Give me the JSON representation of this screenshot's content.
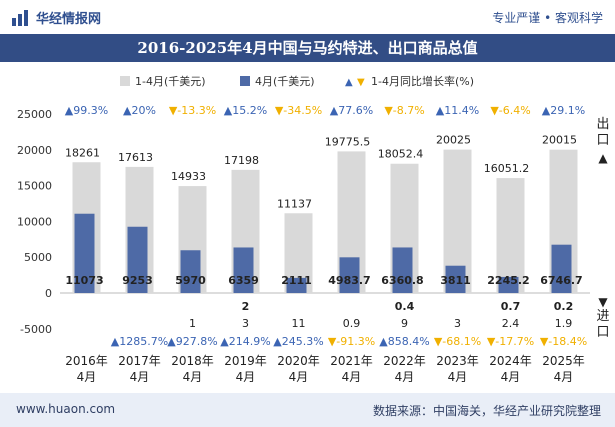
{
  "brand": {
    "logo_text": "华经情报网",
    "slogan": "专业严谨 • 客观科学",
    "website": "www.huaon.com",
    "source": "数据来源：中国海关，华经产业研究院整理"
  },
  "colors": {
    "title_band": "#324d85",
    "bar_cumulative": "#d9d9d9",
    "bar_month": "#4e6aa6",
    "up": "#3b64b3",
    "down": "#f0b000"
  },
  "chart_data": {
    "type": "bar",
    "title": "2016-2025年4月中国与马约特进、出口商品总值",
    "categories": [
      "2016年\n4月",
      "2017年\n4月",
      "2018年\n4月",
      "2019年\n4月",
      "2020年\n4月",
      "2021年\n4月",
      "2022年\n4月",
      "2023年\n4月",
      "2024年\n4月",
      "2025年\n4月"
    ],
    "category_year": [
      "2016年",
      "2017年",
      "2018年",
      "2019年",
      "2020年",
      "2021年",
      "2022年",
      "2023年",
      "2024年",
      "2025年"
    ],
    "category_month": [
      "4月",
      "4月",
      "4月",
      "4月",
      "4月",
      "4月",
      "4月",
      "4月",
      "4月",
      "4月"
    ],
    "legend": [
      "1-4月(千美元)",
      "4月(千美元)",
      "1-4月同比增长率(%)"
    ],
    "legend_placement": "top-center",
    "ylim": [
      -5000,
      25000
    ],
    "yticks": [
      25000,
      20000,
      15000,
      10000,
      5000,
      0,
      -5000
    ],
    "ytick_labels": [
      "25000",
      "20000",
      "15000",
      "10000",
      "5000",
      "0",
      "-5000"
    ],
    "side_label_export": "出口",
    "side_label_import": "进口",
    "series": [
      {
        "name": "1-4月(千美元)",
        "values": [
          18261,
          17613,
          14933,
          17198,
          11137,
          19775.5,
          18052.4,
          20025,
          16051.2,
          20015
        ],
        "labels": [
          "18261",
          "17613",
          "14933",
          "17198",
          "11137",
          "19775.5",
          "18052.4",
          "20025",
          "16051.2",
          "20015"
        ]
      },
      {
        "name": "4月(千美元)",
        "values": [
          11073,
          9253,
          5970,
          6359,
          2111,
          4983.7,
          6360.8,
          3811,
          2245.2,
          6746.7
        ],
        "labels": [
          "11073",
          "9253",
          "5970",
          "6359",
          "2111",
          "4983.7",
          "6360.8",
          "3811",
          "2245.2",
          "6746.7"
        ]
      },
      {
        "name": "1-4月同比增长率(%)",
        "values": [
          99.3,
          20,
          -13.3,
          15.2,
          -34.5,
          77.6,
          -8.7,
          11.4,
          -6.4,
          29.1
        ],
        "labels": [
          "▲99.3%",
          "▲20%",
          "▼-13.3%",
          "▲15.2%",
          "▼-34.5%",
          "▲77.6%",
          "▼-8.7%",
          "▲11.4%",
          "▼-6.4%",
          "▲29.1%"
        ]
      },
      {
        "name": "进口 4月(千美元)",
        "values": [
          null,
          null,
          null,
          2,
          null,
          null,
          0.4,
          null,
          0.7,
          0.2
        ],
        "labels": [
          "",
          "",
          "",
          "2",
          "",
          "",
          "0.4",
          "",
          "0.7",
          "0.2"
        ]
      },
      {
        "name": "进口 1-4月(千美元)",
        "values": [
          null,
          null,
          1,
          3,
          11,
          0.9,
          9,
          3,
          2.4,
          1.9
        ],
        "labels": [
          "",
          "",
          "1",
          "3",
          "11",
          "0.9",
          "9",
          "3",
          "2.4",
          "1.9"
        ]
      },
      {
        "name": "进口 1-4月同比增长率(%)",
        "values": [
          null,
          1285.7,
          927.8,
          214.9,
          245.3,
          -91.3,
          858.4,
          -68.1,
          -17.7,
          -18.4
        ],
        "labels": [
          "",
          "▲1285.7%",
          "▲927.8%",
          "▲214.9%",
          "▲245.3%",
          "▼-91.3%",
          "▲858.4%",
          "▼-68.1%",
          "▼-17.7%",
          "▼-18.4%"
        ]
      }
    ]
  }
}
